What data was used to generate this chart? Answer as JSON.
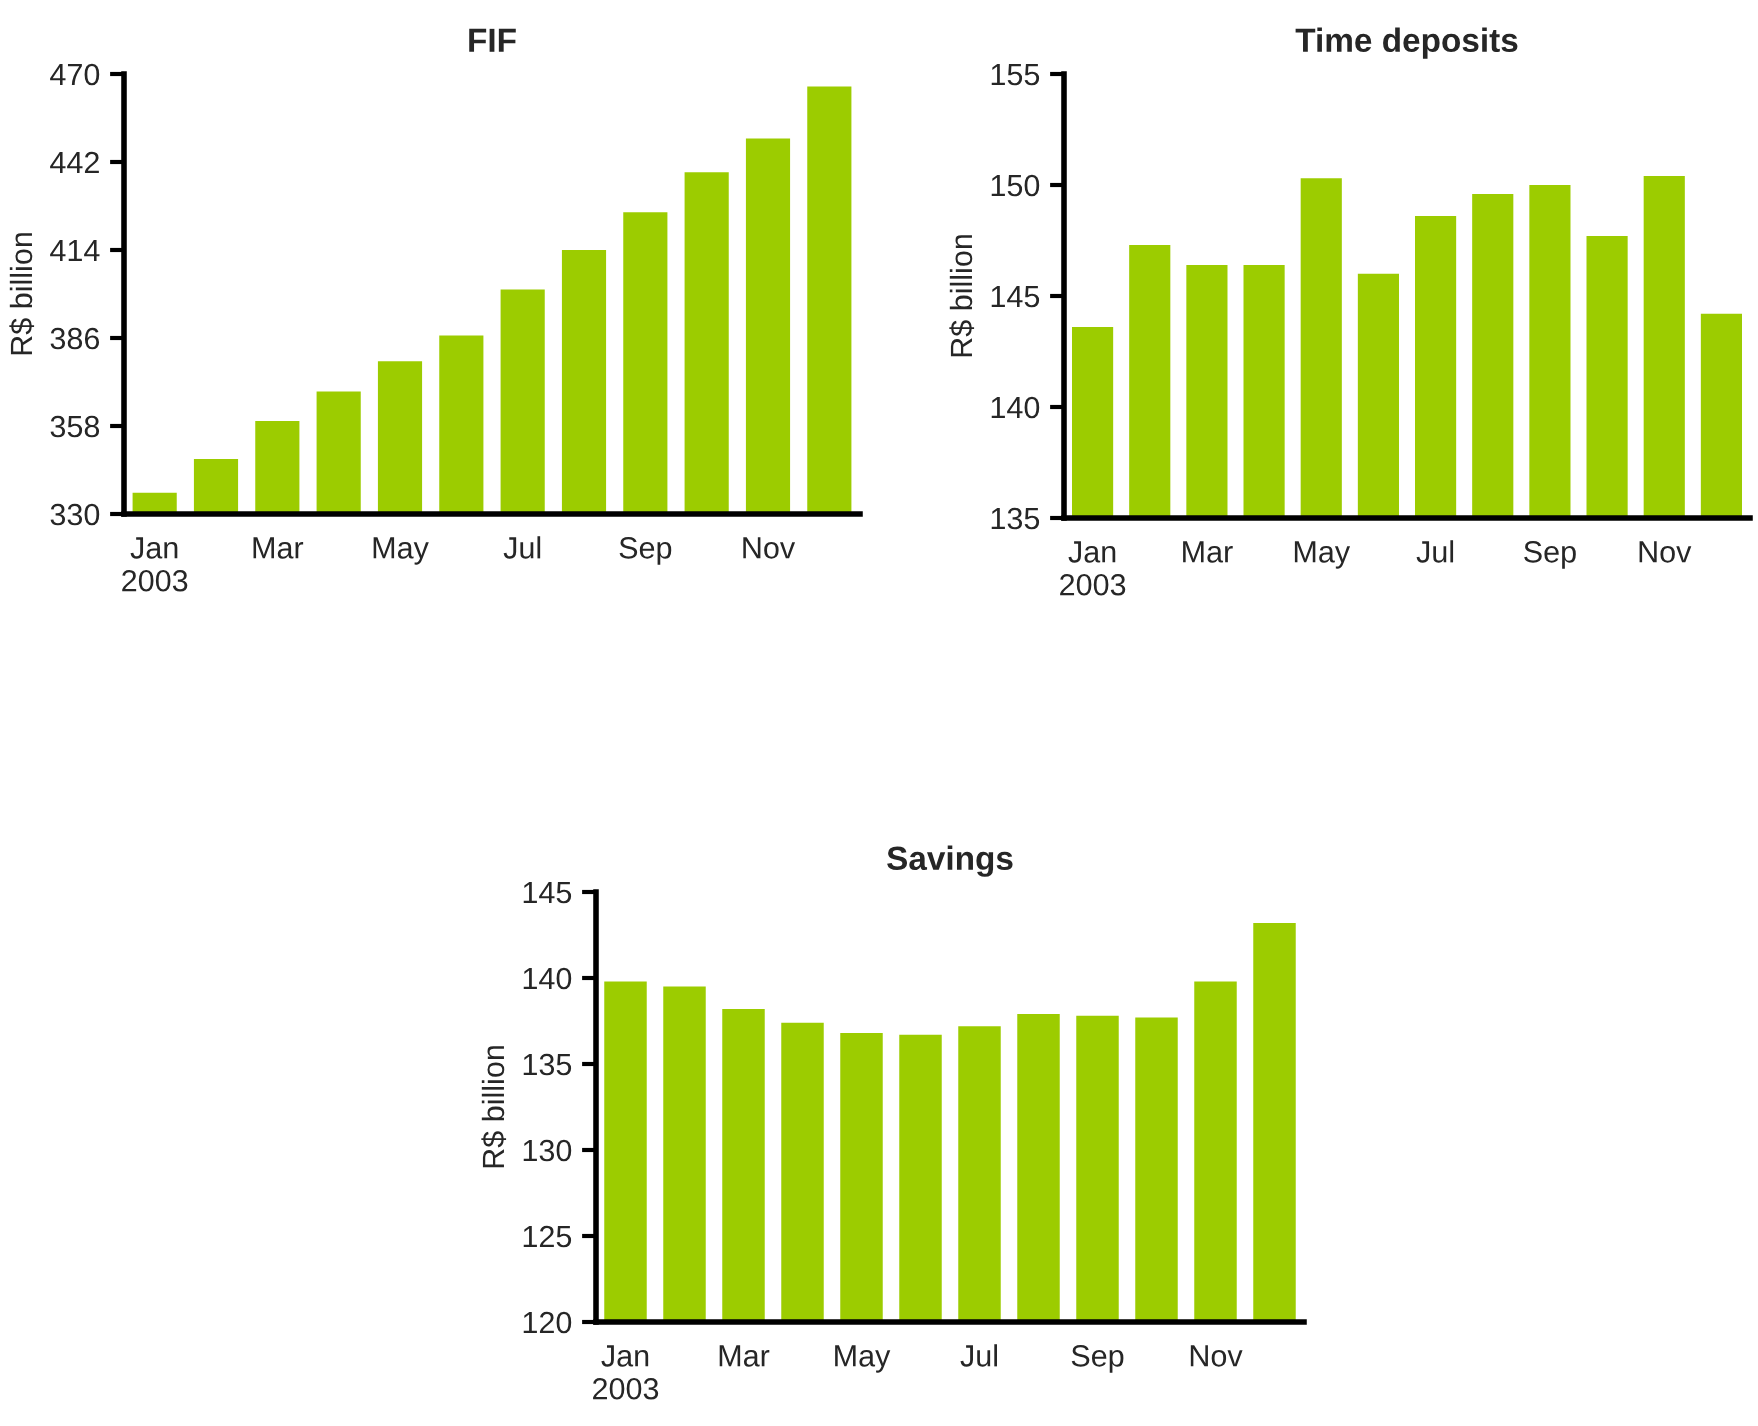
{
  "chart_data": [
    {
      "type": "bar",
      "title": "FIF",
      "ylabel": "R$ billion",
      "categories": [
        "Jan\n2003",
        null,
        "Mar",
        null,
        "May",
        null,
        "Jul",
        null,
        "Sep",
        null,
        "Nov",
        null
      ],
      "values": [
        336.8,
        347.5,
        359.6,
        369,
        378.6,
        386.8,
        401.4,
        414,
        426,
        438.7,
        449.5,
        466
      ],
      "color": "#9ccc00",
      "ylim": [
        330,
        470
      ],
      "yticks": [
        330,
        358,
        386,
        414,
        442,
        470
      ],
      "grid": false
    },
    {
      "type": "bar",
      "title": "Time deposits",
      "ylabel": "R$ billion",
      "categories": [
        "Jan\n2003",
        null,
        "Mar",
        null,
        "May",
        null,
        "Jul",
        null,
        "Sep",
        null,
        "Nov",
        null
      ],
      "values": [
        143.6,
        147.3,
        146.4,
        146.4,
        150.3,
        146.0,
        148.6,
        149.6,
        150.0,
        147.7,
        150.4,
        144.2
      ],
      "color": "#9ccc00",
      "ylim": [
        135,
        155
      ],
      "yticks": [
        135,
        140,
        145,
        150,
        155
      ],
      "grid": false
    },
    {
      "type": "bar",
      "title": "Savings",
      "ylabel": "R$ billion",
      "categories": [
        "Jan\n2003",
        null,
        "Mar",
        null,
        "May",
        null,
        "Jul",
        null,
        "Sep",
        null,
        "Nov",
        null
      ],
      "values": [
        139.8,
        139.5,
        138.2,
        137.4,
        136.8,
        136.7,
        137.2,
        137.9,
        137.8,
        137.7,
        139.8,
        143.2
      ],
      "color": "#9ccc00",
      "ylim": [
        120,
        145
      ],
      "yticks": [
        120,
        125,
        130,
        135,
        140,
        145
      ],
      "grid": false
    }
  ]
}
